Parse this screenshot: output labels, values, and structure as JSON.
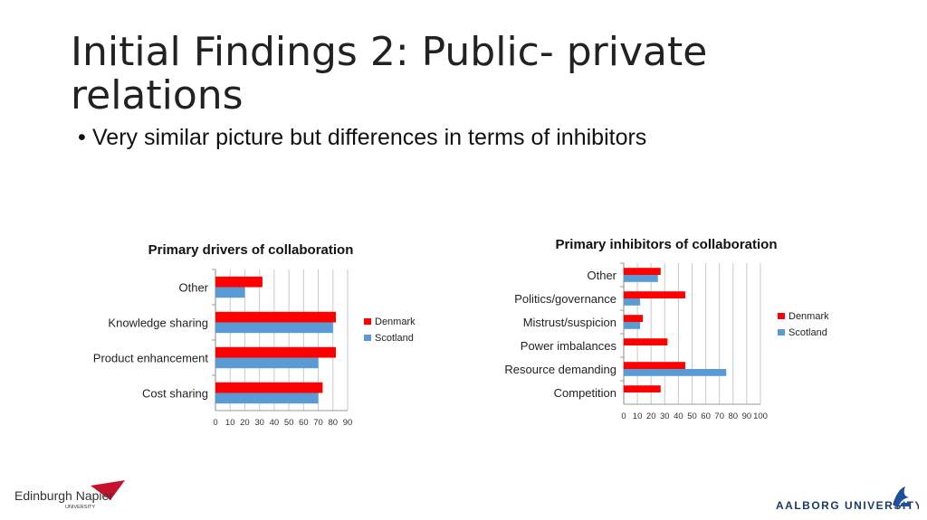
{
  "slide": {
    "title": "Initial Findings 2: Public- private relations",
    "bullet": "Very similar picture but differences in terms of inhibitors"
  },
  "logos": {
    "left_name": "Edinburgh Napier",
    "left_sub": "UNIVERSITY",
    "right_name": "AALBORG UNIVERSITY"
  },
  "colors": {
    "denmark": "#ff0000",
    "scotland": "#5b9bd5"
  },
  "chart_data": [
    {
      "type": "bar",
      "orientation": "horizontal",
      "title": "Primary drivers of collaboration",
      "categories": [
        "Cost sharing",
        "Product enhancement",
        "Knowledge sharing",
        "Other"
      ],
      "series": [
        {
          "name": "Denmark",
          "values": [
            73,
            82,
            82,
            32
          ]
        },
        {
          "name": "Scotland",
          "values": [
            70,
            70,
            80,
            20
          ]
        }
      ],
      "xlim": [
        0,
        90
      ],
      "xticks": [
        0,
        10,
        20,
        30,
        40,
        50,
        60,
        70,
        80,
        90
      ],
      "grid": true,
      "legend": "right"
    },
    {
      "type": "bar",
      "orientation": "horizontal",
      "title": "Primary inhibitors of collaboration",
      "categories": [
        "Competition",
        "Resource demanding",
        "Power imbalances",
        "Mistrust/suspicion",
        "Politics/governance",
        "Other"
      ],
      "series": [
        {
          "name": "Denmark",
          "values": [
            27,
            45,
            32,
            14,
            45,
            27
          ]
        },
        {
          "name": "Scotland",
          "values": [
            0,
            75,
            0,
            12,
            12,
            25
          ]
        }
      ],
      "xlim": [
        0,
        100
      ],
      "xticks": [
        0,
        10,
        20,
        30,
        40,
        50,
        60,
        70,
        80,
        90,
        100
      ],
      "grid": true,
      "legend": "right"
    }
  ]
}
